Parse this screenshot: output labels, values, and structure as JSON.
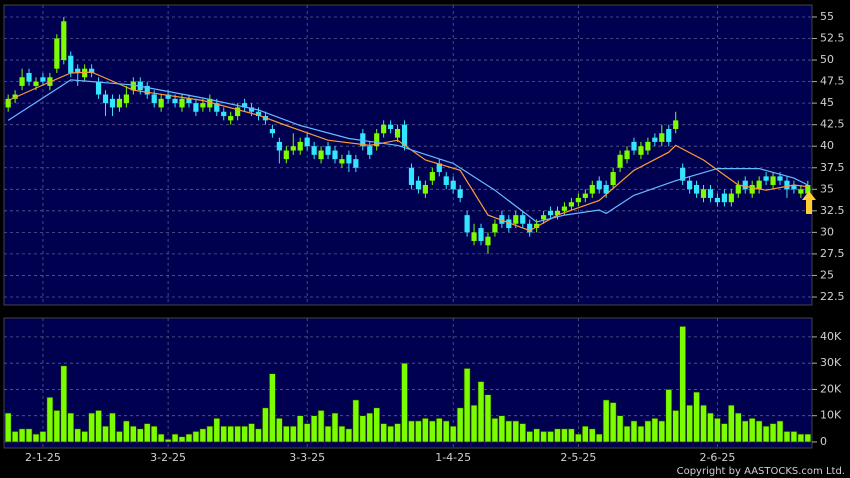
{
  "chart_data": [
    {
      "type": "candlestick",
      "xlim": [
        -0.6,
        115.6
      ],
      "xticks": [
        {
          "value": 5,
          "label": "2-1-25"
        },
        {
          "value": 23,
          "label": "3-2-25"
        },
        {
          "value": 43,
          "label": "3-3-25"
        },
        {
          "value": 64,
          "label": "1-4-25"
        },
        {
          "value": 82,
          "label": "2-5-25"
        },
        {
          "value": 102,
          "label": "2-6-25"
        }
      ],
      "ylim": [
        21.57,
        56.39
      ],
      "yticks": [
        22.5,
        25,
        27.5,
        30,
        32.5,
        35,
        37.5,
        40,
        42.5,
        45,
        47.5,
        50,
        52.5,
        55
      ],
      "grid": true,
      "up_color": "#7cfc00",
      "down_color": "#33e6ff",
      "open": [
        44.5,
        45.5,
        47,
        48.5,
        47,
        48,
        47,
        49,
        50,
        50.5,
        49,
        48,
        49,
        47.5,
        46,
        45.5,
        44.5,
        45,
        46.5,
        47.5,
        47,
        46,
        44.5,
        46,
        45.5,
        44.5,
        45.5,
        45,
        44.5,
        44.5,
        45,
        44,
        43,
        43.5,
        45,
        44.5,
        44,
        43.5,
        42,
        40.5,
        38.5,
        39.5,
        39.5,
        41,
        40,
        38.5,
        40,
        39.5,
        38,
        39,
        38.5,
        41.5,
        40,
        40,
        41.5,
        42.5,
        41,
        42.5,
        37.5,
        36,
        34.5,
        36,
        38,
        36.5,
        36,
        35,
        32,
        29,
        30.5,
        28.5,
        30,
        32,
        31.5,
        31,
        32,
        31,
        30.5,
        31.5,
        32.5,
        32,
        32.5,
        33,
        33.5,
        34,
        34.5,
        36,
        35.5,
        35.5,
        37.5,
        38.5,
        40.5,
        39,
        39.5,
        41,
        40.5,
        42,
        42,
        37.5,
        36,
        35.5,
        34,
        35,
        34,
        34.5,
        33.5,
        34.5,
        36,
        34.5,
        35,
        36.5,
        35.5,
        36.5,
        36,
        35.5,
        34.5,
        34.5
      ],
      "high": [
        46,
        46.5,
        49,
        49,
        48,
        48.5,
        48.5,
        53,
        55,
        51,
        49.5,
        49.5,
        49.5,
        48,
        46.5,
        46,
        46,
        47,
        48,
        48,
        47.5,
        46.5,
        46,
        46.5,
        46,
        46,
        46,
        45.5,
        45.5,
        46,
        45.5,
        44.5,
        44,
        45,
        45.5,
        45,
        44.5,
        44,
        42.5,
        41,
        40,
        41.5,
        41,
        41.5,
        40.5,
        40,
        40.5,
        40,
        39,
        39.5,
        39,
        42,
        40.5,
        42,
        43,
        43,
        42.5,
        43,
        38,
        36.5,
        36,
        37.5,
        38.5,
        37,
        36.5,
        35.5,
        32.5,
        31,
        31,
        30,
        31.5,
        32.5,
        32,
        32.5,
        32.5,
        31.5,
        31.5,
        32.5,
        33,
        33,
        33.5,
        34,
        34.5,
        35,
        36,
        36.5,
        36,
        37.5,
        39.5,
        40,
        41,
        40.5,
        41,
        41.5,
        42.5,
        42.5,
        44,
        38,
        36.5,
        36,
        35.5,
        35.5,
        34.5,
        35,
        35,
        36,
        36.5,
        36,
        36.5,
        37,
        37,
        37,
        36.5,
        36,
        35.5,
        36
      ],
      "low": [
        44,
        45,
        46.5,
        47,
        46.5,
        47,
        46.5,
        48.5,
        49.5,
        48,
        47,
        47.5,
        48,
        45.5,
        43.5,
        43.5,
        44,
        44.5,
        46,
        46,
        45.5,
        44.5,
        44,
        45,
        44.5,
        44,
        44.5,
        43.5,
        44,
        44,
        43.5,
        43,
        42.5,
        43,
        44,
        43.5,
        43,
        42.5,
        41,
        38,
        38,
        39,
        39,
        39.5,
        38.5,
        38,
        38.5,
        38,
        37.5,
        37,
        37,
        39.5,
        38.5,
        39.5,
        41,
        41.5,
        40.5,
        39.5,
        35,
        34.5,
        34,
        35.5,
        36.5,
        35,
        34.5,
        33.5,
        29.5,
        28.5,
        28.5,
        27.5,
        29.5,
        30.5,
        30,
        30.5,
        30.5,
        29.5,
        30,
        31,
        31.5,
        31.5,
        32,
        32.5,
        33,
        33.5,
        34,
        34.5,
        34,
        35,
        37,
        38,
        39,
        38.5,
        39,
        40,
        40,
        40,
        41.5,
        35.5,
        34.5,
        34,
        33.5,
        33.5,
        33,
        33,
        33,
        34,
        34.5,
        34,
        34.5,
        35.5,
        35,
        35.5,
        34,
        34.5,
        34,
        34
      ],
      "close": [
        45.5,
        46,
        48,
        47.5,
        47.5,
        47.5,
        48,
        52.5,
        54.5,
        48.5,
        48.5,
        49,
        48.5,
        46,
        45,
        44.5,
        45.5,
        46,
        47.5,
        46.5,
        46,
        45,
        45.5,
        45.5,
        45,
        45.5,
        45,
        44,
        45,
        45.5,
        44,
        43.5,
        43.5,
        44.5,
        44.5,
        44,
        43.5,
        43,
        41.5,
        39.5,
        39.5,
        40,
        40.5,
        40,
        39,
        39.5,
        39,
        38.5,
        38.5,
        38,
        37.5,
        40,
        39,
        41.5,
        42.5,
        42,
        42,
        40,
        35.5,
        35,
        35.5,
        37,
        37,
        35.5,
        35,
        34,
        30,
        30,
        29,
        29.5,
        31,
        31,
        30.5,
        32,
        31,
        30,
        31,
        32,
        32,
        32.5,
        33,
        33.5,
        34,
        34.5,
        35.5,
        35,
        34.5,
        37,
        39,
        39.5,
        39.5,
        40,
        40.5,
        40.5,
        41.5,
        40.5,
        43,
        36,
        35,
        34.5,
        35,
        34,
        33.5,
        33.5,
        34.5,
        35.5,
        35,
        35.5,
        36,
        36,
        36.5,
        36,
        35,
        35,
        35,
        35.5
      ],
      "lines": [
        {
          "color": "#ff9933",
          "x": [
            0,
            5,
            9,
            12,
            18,
            28,
            36,
            40,
            46,
            52,
            56,
            60,
            65,
            69,
            75,
            79,
            85,
            90,
            95,
            96,
            100,
            105,
            109,
            113,
            115
          ],
          "values": [
            45.3,
            47.1,
            48.5,
            48.6,
            46.5,
            45.3,
            43.6,
            42.4,
            40.7,
            40.1,
            40.7,
            38.4,
            37.2,
            32,
            30.2,
            32,
            33.7,
            37.2,
            39.3,
            40.1,
            38.4,
            35.5,
            34.9,
            35.5,
            35.3
          ]
        },
        {
          "color": "#66bbff",
          "x": [
            0,
            9,
            18,
            28,
            36,
            42,
            49,
            56,
            64,
            70,
            76,
            80,
            85,
            86,
            90,
            96,
            102,
            108,
            113,
            115
          ],
          "values": [
            43,
            47.7,
            47.1,
            45.6,
            44.2,
            42.4,
            40.9,
            40.1,
            38,
            34.9,
            31.2,
            32,
            32.6,
            32.2,
            34.3,
            36,
            37.4,
            37.4,
            36.3,
            35.5
          ]
        }
      ]
    },
    {
      "type": "bar",
      "color": "#7cfc00",
      "ylim": [
        -2300,
        47200
      ],
      "yticks": [
        0,
        {
          "value": 10000,
          "label": "10K"
        },
        {
          "value": 20000,
          "label": "20K"
        },
        {
          "value": 30000,
          "label": "30K"
        },
        {
          "value": 40000,
          "label": "40K"
        }
      ],
      "values": [
        11000,
        4000,
        5000,
        5000,
        3000,
        4000,
        17000,
        12000,
        29000,
        11000,
        5000,
        4000,
        11000,
        12000,
        6000,
        11000,
        4000,
        8000,
        6000,
        5000,
        7000,
        6000,
        3000,
        1000,
        3000,
        2000,
        3000,
        4000,
        5000,
        6000,
        9000,
        6000,
        6000,
        6000,
        6000,
        7000,
        5000,
        13000,
        26000,
        9000,
        6000,
        6000,
        10000,
        7000,
        10000,
        12000,
        6000,
        11000,
        6000,
        5000,
        16000,
        10000,
        11000,
        13000,
        7000,
        6000,
        7000,
        30000,
        8000,
        8000,
        9000,
        8000,
        9000,
        8000,
        6000,
        13000,
        28000,
        14000,
        23000,
        18000,
        9000,
        10000,
        8000,
        8000,
        7000,
        4000,
        5000,
        4000,
        4000,
        5000,
        5000,
        5000,
        3000,
        6000,
        5000,
        3000,
        16000,
        15000,
        10000,
        6000,
        8000,
        6000,
        8000,
        9000,
        8000,
        20000,
        12000,
        44000,
        14000,
        19000,
        14000,
        11000,
        9000,
        7000,
        14000,
        11000,
        8000,
        9000,
        8000,
        6000,
        7000,
        8000,
        4000,
        4000,
        3000,
        3000
      ]
    }
  ],
  "footer": "Copyright by AASTOCKS.com Ltd."
}
